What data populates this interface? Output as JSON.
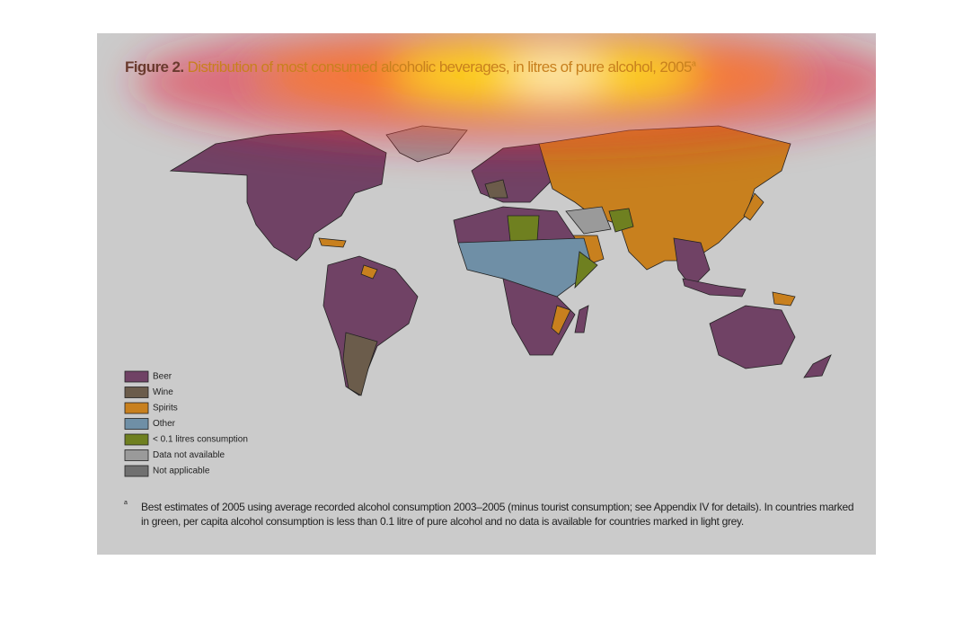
{
  "figure": {
    "label": "Figure 2.",
    "title": "Distribution of most consumed alcoholic beverages, in litres of pure alcohol, 2005",
    "title_note": "a"
  },
  "legend": [
    {
      "label": "Beer",
      "color": "#704265"
    },
    {
      "label": "Wine",
      "color": "#6b5c4b"
    },
    {
      "label": "Spirits",
      "color": "#c8801e"
    },
    {
      "label": "Other",
      "color": "#6f8fa6"
    },
    {
      "label": "< 0.1 litres consumption",
      "color": "#6f8020"
    },
    {
      "label": "Data not available",
      "color": "#9a9a9a"
    },
    {
      "label": "Not applicable",
      "color": "#707070"
    }
  ],
  "footnote": {
    "marker": "a",
    "text": "Best estimates of 2005 using average recorded alcohol consumption 2003–2005 (minus tourist consumption; see Appendix IV for details). In countries marked in green, per capita alcohol consumption is less than 0.1 litre of pure alcohol and no data is available for countries marked in light grey."
  }
}
